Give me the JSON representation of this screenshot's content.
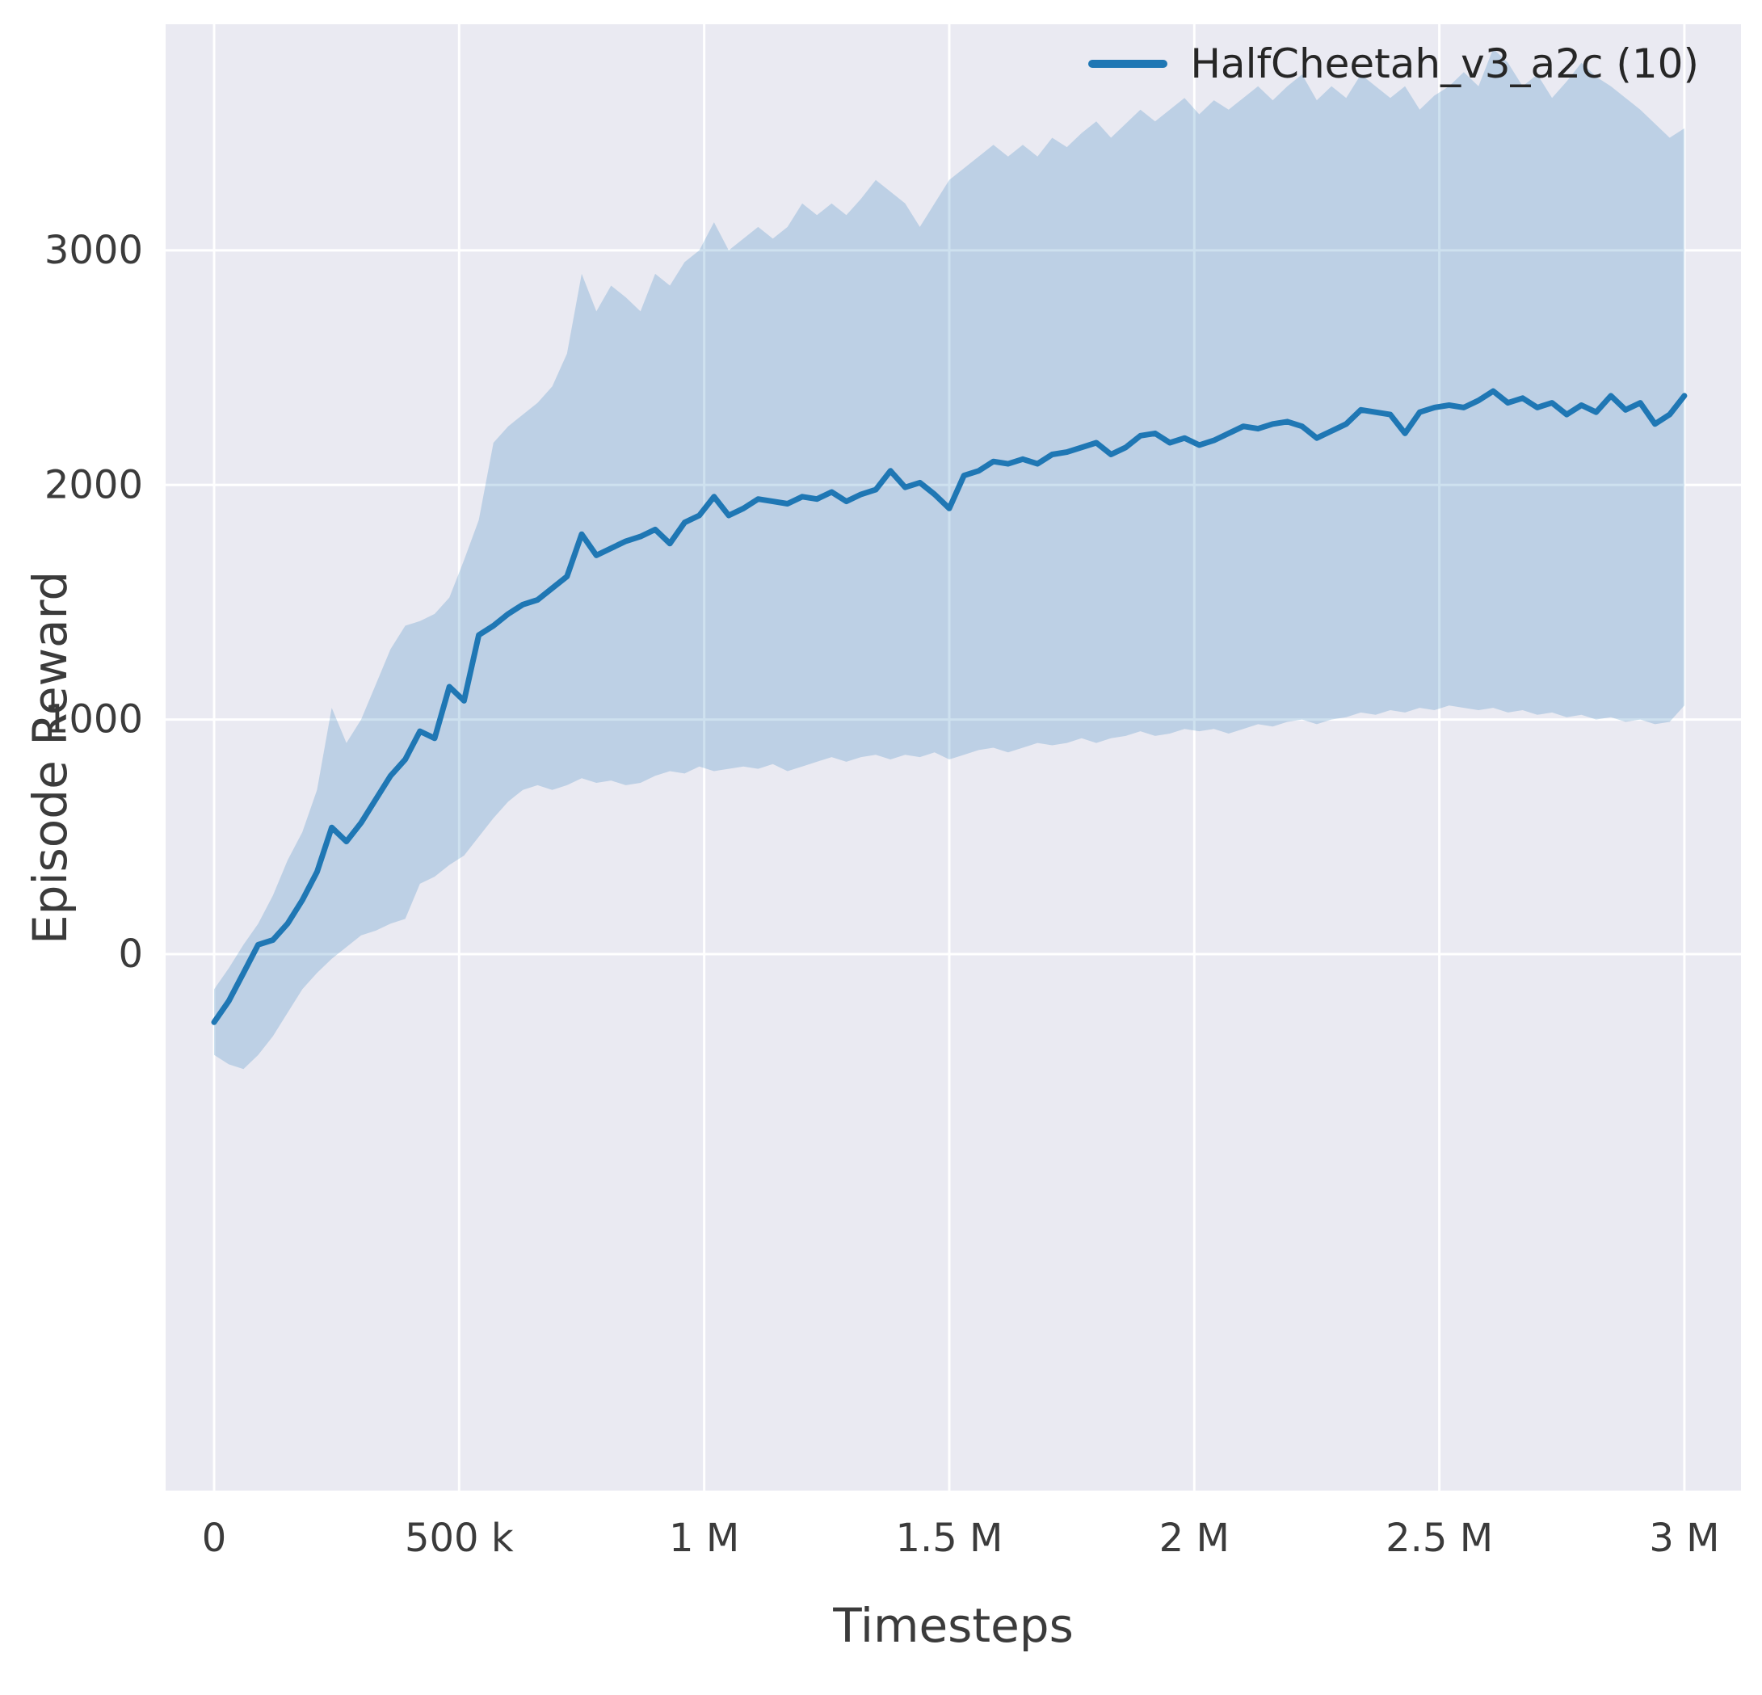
{
  "chart_data": {
    "type": "line",
    "title": "",
    "xlabel": "Timesteps",
    "ylabel": "Episode Reward",
    "legend_position": "upper right",
    "grid": true,
    "xlim": [
      -98900,
      3115500
    ],
    "ylim": [
      -2287,
      3964
    ],
    "x_ticks": {
      "values": [
        0,
        500000,
        1000000,
        1500000,
        2000000,
        2500000,
        3000000
      ],
      "labels": [
        "0",
        "500 k",
        "1 M",
        "1.5 M",
        "2 M",
        "2.5 M",
        "3 M"
      ]
    },
    "y_ticks": {
      "values": [
        0,
        1000,
        2000,
        3000
      ],
      "labels": [
        "0",
        "1000",
        "2000",
        "3000"
      ]
    },
    "style": {
      "plot_background": "#eaeaf2",
      "grid_color": "#ffffff",
      "line_color": "#1f77b4",
      "band_color": "#1f77b4",
      "band_opacity": 0.22,
      "text_color": "#3b3b3b",
      "line_width": 7
    },
    "series": [
      {
        "name": "HalfCheetah_v3_a2c (10)",
        "x_start": 0,
        "x_step": 30000,
        "mean": [
          -290,
          -200,
          -80,
          40,
          60,
          130,
          230,
          350,
          540,
          480,
          560,
          660,
          760,
          830,
          950,
          920,
          1140,
          1080,
          1360,
          1400,
          1450,
          1490,
          1510,
          1560,
          1610,
          1790,
          1700,
          1730,
          1760,
          1780,
          1810,
          1750,
          1840,
          1870,
          1950,
          1870,
          1900,
          1940,
          1930,
          1920,
          1950,
          1940,
          1970,
          1930,
          1960,
          1980,
          2060,
          1990,
          2010,
          1960,
          1900,
          2040,
          2060,
          2100,
          2090,
          2110,
          2090,
          2130,
          2140,
          2160,
          2180,
          2130,
          2160,
          2210,
          2220,
          2180,
          2200,
          2170,
          2190,
          2220,
          2250,
          2240,
          2260,
          2270,
          2250,
          2200,
          2230,
          2260,
          2320,
          2310,
          2300,
          2220,
          2310,
          2330,
          2340,
          2330,
          2360,
          2400,
          2350,
          2370,
          2330,
          2350,
          2300,
          2340,
          2310,
          2380,
          2320,
          2350,
          2260,
          2300,
          2380
        ],
        "upper": [
          -150,
          -60,
          40,
          130,
          250,
          400,
          520,
          700,
          1050,
          900,
          1000,
          1150,
          1300,
          1400,
          1420,
          1450,
          1520,
          1680,
          1850,
          2180,
          2250,
          2300,
          2350,
          2420,
          2560,
          2900,
          2740,
          2850,
          2800,
          2740,
          2900,
          2850,
          2950,
          3000,
          3120,
          3000,
          3050,
          3100,
          3050,
          3100,
          3200,
          3150,
          3200,
          3150,
          3220,
          3300,
          3250,
          3200,
          3100,
          3200,
          3300,
          3350,
          3400,
          3450,
          3400,
          3450,
          3400,
          3480,
          3440,
          3500,
          3550,
          3480,
          3540,
          3600,
          3550,
          3600,
          3650,
          3580,
          3640,
          3600,
          3650,
          3700,
          3640,
          3700,
          3750,
          3640,
          3700,
          3650,
          3750,
          3700,
          3650,
          3700,
          3600,
          3660,
          3700,
          3760,
          3700,
          3860,
          3800,
          3700,
          3750,
          3650,
          3720,
          3800,
          3740,
          3700,
          3650,
          3600,
          3540,
          3480,
          3520
        ],
        "lower": [
          -430,
          -470,
          -490,
          -430,
          -350,
          -250,
          -150,
          -80,
          -20,
          30,
          80,
          100,
          130,
          150,
          300,
          330,
          380,
          420,
          500,
          580,
          650,
          700,
          720,
          700,
          720,
          750,
          730,
          740,
          720,
          730,
          760,
          780,
          770,
          800,
          780,
          790,
          800,
          790,
          810,
          780,
          800,
          820,
          840,
          820,
          840,
          850,
          830,
          850,
          840,
          860,
          830,
          850,
          870,
          880,
          860,
          880,
          900,
          890,
          900,
          920,
          900,
          920,
          930,
          950,
          930,
          940,
          960,
          950,
          960,
          940,
          960,
          980,
          970,
          990,
          1000,
          980,
          1000,
          1010,
          1030,
          1020,
          1040,
          1030,
          1050,
          1040,
          1060,
          1050,
          1040,
          1050,
          1030,
          1040,
          1020,
          1030,
          1010,
          1020,
          1000,
          1010,
          990,
          1000,
          980,
          990,
          1060
        ]
      }
    ]
  }
}
